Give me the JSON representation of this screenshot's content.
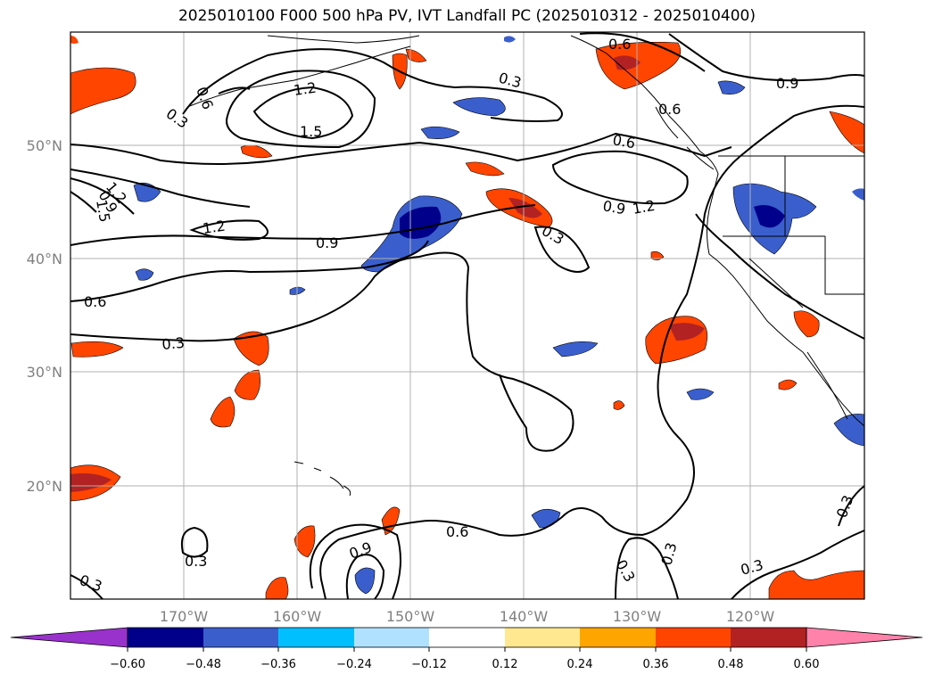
{
  "title": "2025010100 F000 500 hPa PV, IVT Landfall PC (2025010312 - 2025010400)",
  "map": {
    "lat_labels": [
      "50°N",
      "40°N",
      "30°N",
      "20°N"
    ],
    "lon_labels": [
      "170°W",
      "160°W",
      "150°W",
      "140°W",
      "130°W",
      "120°W"
    ],
    "contour_labels": [
      "0.6",
      "0.9",
      "0.3",
      "1.2",
      "1.5",
      "0.3",
      "0.6",
      "0.9",
      "0.6",
      "0.6",
      "0.9",
      "1.2",
      "1.2",
      "1.5",
      "1.2",
      "0.9",
      "0.3",
      "0.6",
      "0.3",
      "0.6",
      "0.9",
      "0.3",
      "0.3",
      "0.3",
      "0.3",
      "0.3",
      "0.3"
    ],
    "colors": {
      "land_line": "#000000",
      "grid": "#b0b0b0",
      "pos_strong": "#b22222",
      "pos_mid": "#ff4500",
      "pos_weak": "#ffa500",
      "pos_faint": "#ffe88f",
      "neg_strong": "#00008b",
      "neg_mid": "#3a5fcd",
      "neg_weak": "#00bfff",
      "neg_faint": "#b0e2ff"
    }
  },
  "colorbar": {
    "ticks": [
      "−0.60",
      "−0.48",
      "−0.36",
      "−0.24",
      "−0.12",
      "0.12",
      "0.24",
      "0.36",
      "0.48",
      "0.60"
    ],
    "colors": [
      "#9932cc",
      "#00008b",
      "#3a5fcd",
      "#00bfff",
      "#b0e2ff",
      "#ffffff",
      "#ffe88f",
      "#ffa500",
      "#ff4500",
      "#b22222",
      "#ff82ab"
    ]
  }
}
